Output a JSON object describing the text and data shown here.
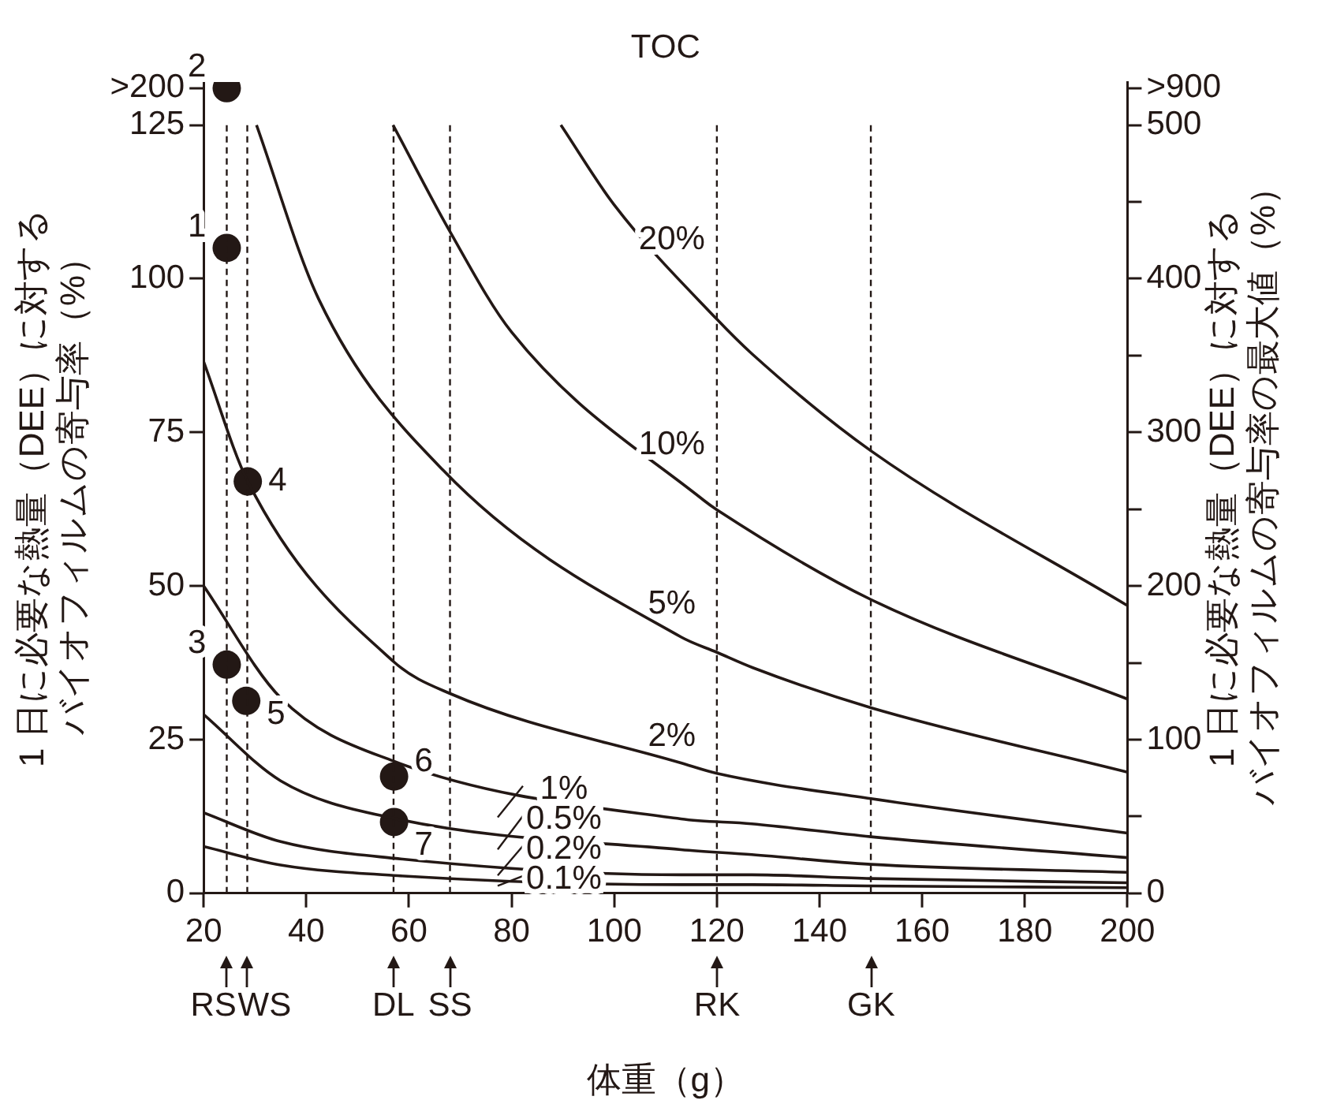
{
  "chart_data": {
    "type": "line",
    "legend_title": "TOC",
    "xlabel": "体重（g）",
    "ylabel": "1 日に必要な熱量（DEE）に対するバイオフィルムの寄与率（%）",
    "y2label": "1 日に必要な熱量（DEE）に対するバイオフィルムの寄与率の最大値（%）",
    "xlim": [
      20,
      200
    ],
    "xticks": [
      20,
      40,
      60,
      80,
      100,
      120,
      140,
      160,
      180,
      200
    ],
    "ylim": [
      0,
      132
    ],
    "yticks": [
      0,
      25,
      50,
      75,
      100,
      125,
      {
        "value": 131,
        "label": ">200"
      }
    ],
    "y2lim": [
      0,
      528
    ],
    "y2ticks": [
      0,
      {
        "value": 50,
        "label": null
      },
      100,
      {
        "value": 150,
        "label": null
      },
      200,
      {
        "value": 250,
        "label": null
      },
      300,
      {
        "value": 350,
        "label": null
      },
      400,
      {
        "value": 450,
        "label": null
      },
      500,
      {
        "value": 524,
        "label": ">900"
      }
    ],
    "grid": false,
    "line_style": "solid",
    "legend": "bottom",
    "series": [
      {
        "name": "20%",
        "color": "#231815",
        "marker": "none",
        "x": [
          89.6,
          100,
          120,
          126.8,
          150,
          200
        ],
        "values": [
          125,
          112,
          93.4,
          87.8,
          72,
          46.8
        ]
      },
      {
        "name": "10%",
        "color": "#231815",
        "marker": "none",
        "x": [
          56.9,
          67.9,
          80,
          117.5,
          120,
          150,
          200
        ],
        "values": [
          125,
          107.8,
          91.3,
          63.9,
          62.4,
          47.8,
          31.6
        ]
      },
      {
        "name": "5%",
        "color": "#231815",
        "marker": "none",
        "x": [
          30.3,
          42.4,
          66.7,
          113,
          120,
          127,
          150,
          200
        ],
        "values": [
          125,
          96.7,
          68.8,
          41.7,
          39.2,
          36.7,
          30.2,
          19.7
        ]
      },
      {
        "name": "2%",
        "color": "#231815",
        "marker": "none",
        "x": [
          20,
          28.6,
          57,
          68,
          113,
          120,
          150,
          200
        ],
        "values": [
          86.5,
          67,
          37.7,
          32.5,
          21.2,
          19.5,
          15.4,
          9.8
        ]
      },
      {
        "name": "1%",
        "color": "#231815",
        "marker": "none",
        "x": [
          20,
          35,
          57,
          113,
          126.8,
          150,
          200
        ],
        "values": [
          50,
          31.8,
          21.5,
          12.1,
          11.3,
          9.2,
          5.8
        ]
      },
      {
        "name": "0.5%",
        "color": "#231815",
        "marker": "none",
        "x": [
          20,
          35,
          57,
          113,
          126.8,
          150,
          200
        ],
        "values": [
          29.1,
          18.3,
          12.2,
          7.1,
          6.3,
          4.7,
          3.4
        ]
      },
      {
        "name": "0.2%",
        "color": "#231815",
        "marker": "none",
        "x": [
          20,
          35,
          57,
          113,
          126.8,
          150,
          200
        ],
        "values": [
          13.1,
          8.4,
          5.7,
          3.0,
          3.0,
          2.4,
          1.7
        ]
      },
      {
        "name": "0.1%",
        "color": "#231815",
        "marker": "none",
        "x": [
          20,
          35,
          57,
          113,
          126.8,
          150,
          200
        ],
        "values": [
          7.6,
          4.6,
          2.9,
          1.4,
          1.4,
          1.2,
          0.9
        ]
      },
      {
        "type": "scatter",
        "color": "#231815",
        "marker": "circle",
        "x": [
          24.5,
          24.5,
          24.5,
          28.6,
          28.3,
          57.1,
          57.1
        ],
        "values": [
          105,
          131,
          37.2,
          67,
          31.3,
          19,
          11.6
        ]
      }
    ],
    "annotations": [
      {
        "text": "1",
        "x": 24.5,
        "y": 105
      },
      {
        "text": "2",
        "x": 24.5,
        "y": 131
      },
      {
        "text": "3",
        "x": 24.5,
        "y": 37.2
      },
      {
        "text": "4",
        "x": 28.6,
        "y": 67
      },
      {
        "text": "5",
        "x": 28.3,
        "y": 31.3
      },
      {
        "text": "6",
        "x": 57.1,
        "y": 19
      },
      {
        "text": "7",
        "x": 57.1,
        "y": 11.6
      }
    ],
    "ref_lines": [
      {
        "axis": "x",
        "value": 24.5,
        "label": "RS",
        "line_style": "dashed"
      },
      {
        "axis": "x",
        "value": 28.5,
        "label": "WS",
        "line_style": "dashed"
      },
      {
        "axis": "x",
        "value": 57,
        "label": "DL",
        "line_style": "dashed"
      },
      {
        "axis": "x",
        "value": 68,
        "label": "SS",
        "line_style": "dashed"
      },
      {
        "axis": "x",
        "value": 120,
        "label": "RK",
        "line_style": "dashed"
      },
      {
        "axis": "x",
        "value": 150,
        "label": "GK",
        "line_style": "dashed"
      }
    ]
  }
}
